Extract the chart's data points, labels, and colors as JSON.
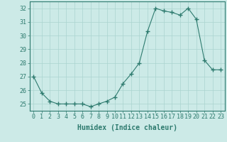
{
  "x": [
    0,
    1,
    2,
    3,
    4,
    5,
    6,
    7,
    8,
    9,
    10,
    11,
    12,
    13,
    14,
    15,
    16,
    17,
    18,
    19,
    20,
    21,
    22,
    23
  ],
  "y": [
    27.0,
    25.8,
    25.2,
    25.0,
    25.0,
    25.0,
    25.0,
    24.8,
    25.0,
    25.2,
    25.5,
    26.5,
    27.2,
    28.0,
    30.3,
    32.0,
    31.8,
    31.7,
    31.5,
    32.0,
    31.2,
    28.2,
    27.5,
    27.5
  ],
  "line_color": "#2d7a6e",
  "marker": "+",
  "marker_size": 4.0,
  "bg_color": "#cceae7",
  "grid_color": "#aad4d0",
  "axis_color": "#2d7a6e",
  "tick_color": "#2d7a6e",
  "xlabel": "Humidex (Indice chaleur)",
  "xlim": [
    -0.5,
    23.5
  ],
  "ylim": [
    24.5,
    32.5
  ],
  "yticks": [
    25,
    26,
    27,
    28,
    29,
    30,
    31,
    32
  ],
  "xticks": [
    0,
    1,
    2,
    3,
    4,
    5,
    6,
    7,
    8,
    9,
    10,
    11,
    12,
    13,
    14,
    15,
    16,
    17,
    18,
    19,
    20,
    21,
    22,
    23
  ],
  "font_size": 6,
  "xlabel_fontsize": 7,
  "lw": 0.8
}
